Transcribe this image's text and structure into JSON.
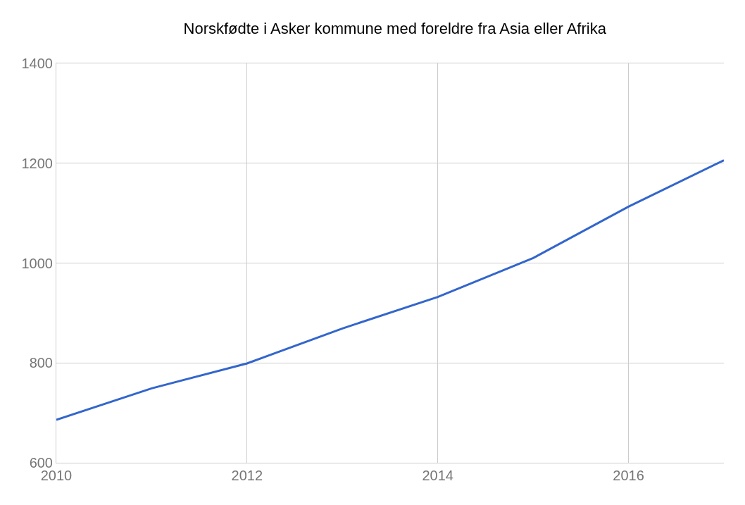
{
  "chart_data": {
    "type": "line",
    "title": "Norskfødte i Asker kommune med foreldre fra Asia eller Afrika",
    "x": [
      2010,
      2011,
      2012,
      2013,
      2014,
      2015,
      2016,
      2017
    ],
    "series": [
      {
        "color": "#3366cc",
        "values": [
          686,
          749,
          799,
          869,
          932,
          1010,
          1113,
          1206
        ]
      }
    ],
    "xlim": [
      2010,
      2017
    ],
    "xticks": [
      2010,
      2012,
      2014,
      2016
    ],
    "ylim": [
      600,
      1400
    ],
    "yticks": [
      600,
      800,
      1000,
      1200,
      1400
    ],
    "grid": true,
    "marker": "none",
    "line_style": "solid"
  }
}
